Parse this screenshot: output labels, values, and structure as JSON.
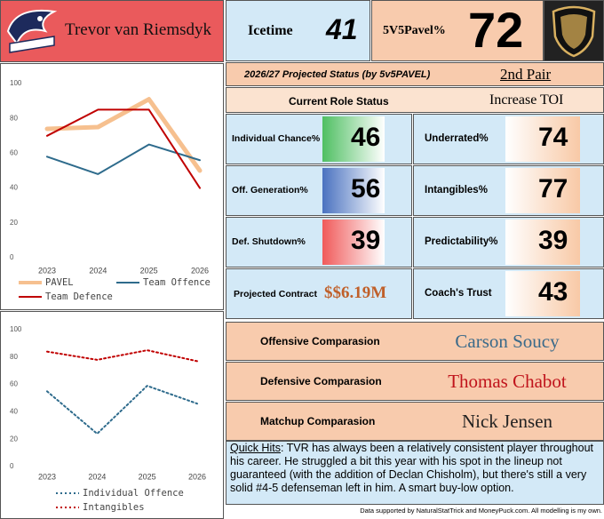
{
  "header": {
    "player": "Trevor van Riemsdyk"
  },
  "icetime": {
    "label": "Icetime",
    "value": 41
  },
  "pavel": {
    "label": "5V5Pavel%",
    "value": 72
  },
  "projection": {
    "label": "2026/27 Projected Status (by 5v5PAVEL)",
    "value": "2nd Pair"
  },
  "role": {
    "label": "Current Role Status",
    "value": "Increase TOI"
  },
  "left_metrics": [
    {
      "label": "Individual Chance%",
      "value": 46,
      "color": "#4fbf62"
    },
    {
      "label": "Off. Generation%",
      "value": 56,
      "color": "#4a72c0"
    },
    {
      "label": "Def. Shutdown%",
      "value": 39,
      "color": "#f05a5a"
    }
  ],
  "contract": {
    "label": "Projected Contract",
    "value": "$$6.19M"
  },
  "right_metrics": [
    {
      "label": "Underrated%",
      "value": 74
    },
    {
      "label": "Intangibles%",
      "value": 77
    },
    {
      "label": "Predictability%",
      "value": 39
    },
    {
      "label": "Coach's Trust",
      "value": 43
    }
  ],
  "comparisons": [
    {
      "label": "Offensive Comparasion",
      "player": "Carson Soucy",
      "color": "#3a6a8a"
    },
    {
      "label": "Defensive Comparasion",
      "player": "Thomas Chabot",
      "color": "#c0141c"
    },
    {
      "label": "Matchup Comparasion",
      "player": "Nick Jensen",
      "color": "#222222"
    }
  ],
  "quick_hits": {
    "label": "Quick Hits",
    "text": ": TVR has always been a relatively consistent player throughout his career. He struggled a bit this year with his spot in the lineup not guaranteed (with the addition of Declan Chisholm), but there's still a very solid #4-5 defenseman left in him. A smart buy-low option."
  },
  "footer": "Data supported by NaturalStatTrick and MoneyPuck.com. All modelling is my own.",
  "chart_data": [
    {
      "type": "line",
      "categories": [
        "2023",
        "2024",
        "2025",
        "2026"
      ],
      "ylim": [
        0,
        100
      ],
      "yticks": [
        0,
        20,
        40,
        60,
        80,
        100
      ],
      "series": [
        {
          "name": "PAVEL",
          "color": "#f6c08f",
          "linewidth": 5,
          "values": [
            74,
            75,
            91,
            50
          ]
        },
        {
          "name": "Team Offence",
          "color": "#2e6b8c",
          "linewidth": 2,
          "values": [
            58,
            48,
            65,
            56
          ]
        },
        {
          "name": "Team Defence",
          "color": "#c00000",
          "linewidth": 2,
          "values": [
            70,
            85,
            85,
            40
          ]
        }
      ]
    },
    {
      "type": "line",
      "categories": [
        "2023",
        "2024",
        "2025",
        "2026"
      ],
      "ylim": [
        0,
        100
      ],
      "yticks": [
        0,
        20,
        40,
        60,
        80,
        100
      ],
      "series": [
        {
          "name": "Individual Offence",
          "color": "#2e6b8c",
          "linewidth": 2,
          "line_style": "dotted",
          "values": [
            55,
            24,
            59,
            46
          ]
        },
        {
          "name": "Intangibles",
          "color": "#c00000",
          "linewidth": 2,
          "line_style": "dotted",
          "values": [
            84,
            78,
            85,
            77
          ]
        }
      ]
    }
  ]
}
